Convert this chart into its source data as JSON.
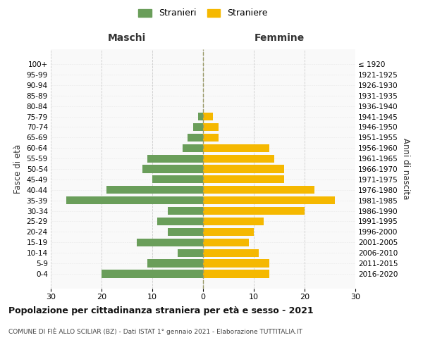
{
  "age_groups": [
    "0-4",
    "5-9",
    "10-14",
    "15-19",
    "20-24",
    "25-29",
    "30-34",
    "35-39",
    "40-44",
    "45-49",
    "50-54",
    "55-59",
    "60-64",
    "65-69",
    "70-74",
    "75-79",
    "80-84",
    "85-89",
    "90-94",
    "95-99",
    "100+"
  ],
  "birth_years": [
    "2016-2020",
    "2011-2015",
    "2006-2010",
    "2001-2005",
    "1996-2000",
    "1991-1995",
    "1986-1990",
    "1981-1985",
    "1976-1980",
    "1971-1975",
    "1966-1970",
    "1961-1965",
    "1956-1960",
    "1951-1955",
    "1946-1950",
    "1941-1945",
    "1936-1940",
    "1931-1935",
    "1926-1930",
    "1921-1925",
    "≤ 1920"
  ],
  "males": [
    20,
    11,
    5,
    13,
    7,
    9,
    7,
    27,
    19,
    10,
    12,
    11,
    4,
    3,
    2,
    1,
    0,
    0,
    0,
    0,
    0
  ],
  "females": [
    13,
    13,
    11,
    9,
    10,
    12,
    20,
    26,
    22,
    16,
    16,
    14,
    13,
    3,
    3,
    2,
    0,
    0,
    0,
    0,
    0
  ],
  "male_color": "#6a9e5a",
  "female_color": "#f5b800",
  "grid_color": "#cccccc",
  "center_line_color": "#999966",
  "xlim": 30,
  "title": "Popolazione per cittadinanza straniera per età e sesso - 2021",
  "subtitle": "COMUNE DI FIÈ ALLO SCILIAR (BZ) - Dati ISTAT 1° gennaio 2021 - Elaborazione TUTTITALIA.IT",
  "ylabel_left": "Fasce di età",
  "ylabel_right": "Anni di nascita",
  "legend_male": "Stranieri",
  "legend_female": "Straniere",
  "header_male": "Maschi",
  "header_female": "Femmine",
  "bg_color": "#ffffff",
  "plot_bg_color": "#f9f9f9",
  "bar_height": 0.75
}
